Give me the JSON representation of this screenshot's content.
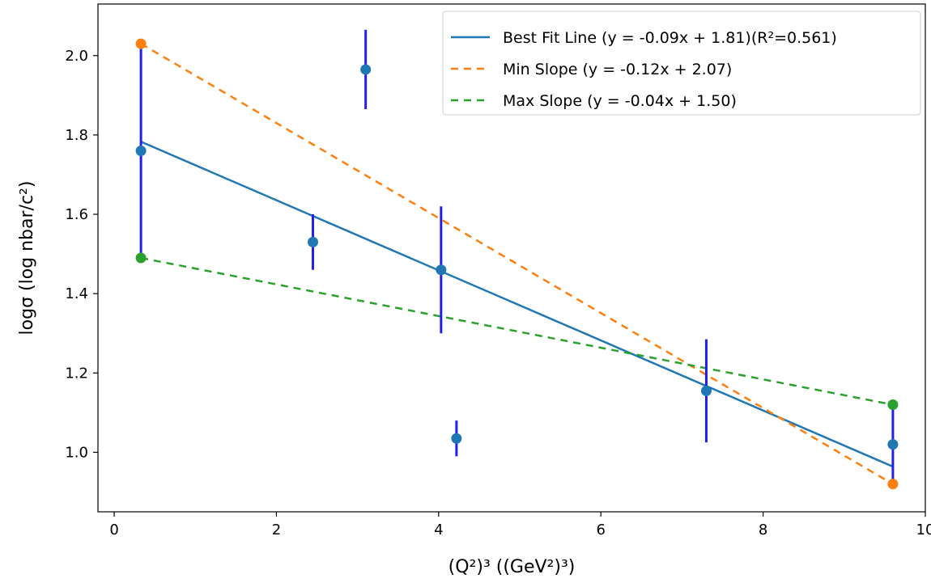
{
  "chart_data": {
    "type": "scatter",
    "title": "",
    "xlabel": "(Q²)³ ((GeV²)³)",
    "ylabel": "logσ (log nbar/c²)",
    "xlim": [
      -0.2,
      10.0
    ],
    "ylim": [
      0.85,
      2.13
    ],
    "xticks": [
      0,
      2,
      4,
      6,
      8,
      10
    ],
    "yticks": [
      1.0,
      1.2,
      1.4,
      1.6,
      1.8,
      2.0
    ],
    "grid": false,
    "legend_position": "top-right",
    "colors": {
      "data": "#1f77b4",
      "errorbar": "#2020ee",
      "best_fit": "#1f77b4",
      "min_slope": "#ff7f0e",
      "max_slope": "#2ca02c"
    },
    "series": [
      {
        "name": "",
        "kind": "errorbar",
        "x": [
          0.33,
          2.45,
          3.1,
          4.03,
          4.22,
          7.3,
          9.6
        ],
        "y": [
          1.76,
          1.53,
          1.965,
          1.46,
          1.035,
          1.155,
          1.02
        ],
        "yerr": [
          0.27,
          0.07,
          0.1,
          0.16,
          0.045,
          0.13,
          0.1
        ]
      },
      {
        "name": "Best Fit Line (y = -0.09x + 1.81)(R²=0.561)",
        "kind": "line",
        "style": "solid",
        "x": [
          0.33,
          9.6
        ],
        "y": [
          1.783,
          0.964
        ]
      },
      {
        "name": "Min Slope (y = -0.12x + 2.07)",
        "kind": "line",
        "style": "dashed",
        "x": [
          0.33,
          9.6
        ],
        "y": [
          2.03,
          0.92
        ],
        "endpoints": true
      },
      {
        "name": "Max Slope (y = -0.04x + 1.50)",
        "kind": "line",
        "style": "dashed",
        "x": [
          0.33,
          9.6
        ],
        "y": [
          1.49,
          1.12
        ],
        "endpoints": true
      }
    ]
  }
}
